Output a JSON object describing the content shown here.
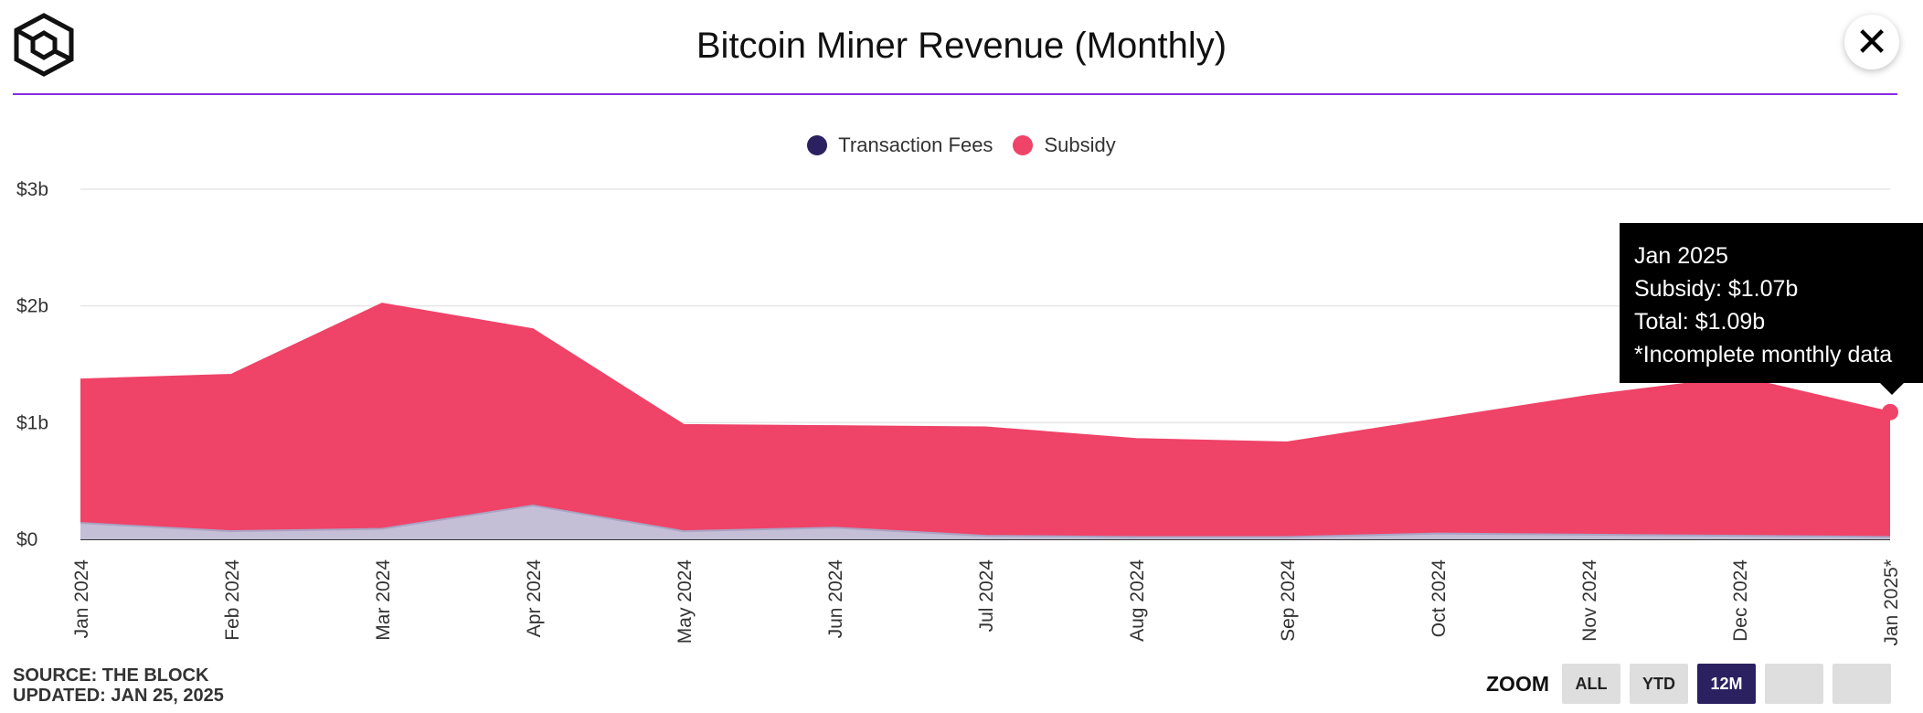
{
  "header": {
    "title": "Bitcoin Miner Revenue (Monthly)",
    "close_icon": "close-icon",
    "logo_icon": "cube-logo-icon"
  },
  "colors": {
    "accent_rule": "#8a2be2",
    "transaction_fees": "#2b2060",
    "fees_area": "#c4bfd6",
    "subsidy": "#ef4368"
  },
  "chart_data": {
    "type": "area",
    "stacked": true,
    "title": "Bitcoin Miner Revenue (Monthly)",
    "categories": [
      "Jan 2024",
      "Feb 2024",
      "Mar 2024",
      "Apr 2024",
      "May 2024",
      "Jun 2024",
      "Jul 2024",
      "Aug 2024",
      "Sep 2024",
      "Oct 2024",
      "Nov 2024",
      "Dec 2024",
      "Jan 2025*"
    ],
    "series": [
      {
        "name": "Transaction Fees",
        "values": [
          0.14,
          0.07,
          0.09,
          0.29,
          0.07,
          0.1,
          0.03,
          0.02,
          0.02,
          0.05,
          0.04,
          0.03,
          0.02
        ]
      },
      {
        "name": "Subsidy",
        "values": [
          1.23,
          1.34,
          1.93,
          1.51,
          0.91,
          0.87,
          0.93,
          0.84,
          0.81,
          0.98,
          1.19,
          1.36,
          1.07
        ]
      }
    ],
    "y_ticks": [
      "$0",
      "$1b",
      "$2b",
      "$3b"
    ],
    "ylim": [
      0,
      3
    ],
    "grid": true,
    "legend_position": "top-center",
    "xlabel": "",
    "ylabel": ""
  },
  "legend": {
    "items": [
      {
        "label": "Transaction Fees",
        "color": "#2b2060"
      },
      {
        "label": "Subsidy",
        "color": "#ef4368"
      }
    ]
  },
  "tooltip": {
    "line1": "Jan 2025",
    "line2": "Subsidy: $1.07b",
    "line3": "Total: $1.09b",
    "line4": "*Incomplete monthly data"
  },
  "footer": {
    "source": "SOURCE: THE BLOCK",
    "updated": "UPDATED: JAN 25, 2025"
  },
  "zoom": {
    "label": "ZOOM",
    "buttons": [
      "ALL",
      "YTD",
      "12M",
      "",
      ""
    ],
    "active": "12M"
  }
}
